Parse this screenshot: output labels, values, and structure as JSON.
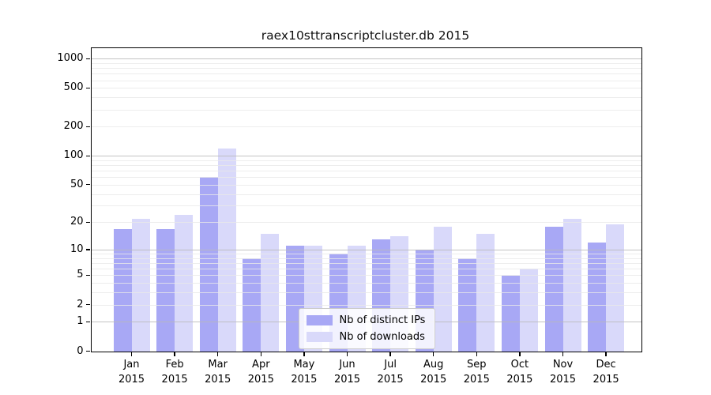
{
  "chart_data": {
    "type": "bar",
    "title": "raex10sttranscriptcluster.db 2015",
    "scale": "log10(value+1)",
    "categories": [
      "Jan",
      "Feb",
      "Mar",
      "Apr",
      "May",
      "Jun",
      "Jul",
      "Aug",
      "Sep",
      "Oct",
      "Nov",
      "Dec"
    ],
    "category_year": "2015",
    "series": [
      {
        "name": "Nb of distinct IPs",
        "color": "#a8a8f5",
        "values": [
          17,
          17,
          60,
          8,
          11,
          9,
          13,
          10,
          8,
          5,
          18,
          12
        ]
      },
      {
        "name": "Nb of downloads",
        "color": "#d9d9fa",
        "values": [
          22,
          24,
          120,
          15,
          11,
          11,
          14,
          18,
          15,
          6,
          22,
          19
        ]
      }
    ],
    "ylabel": "",
    "xlabel": "",
    "yticks": [
      0,
      1,
      2,
      5,
      10,
      20,
      50,
      100,
      200,
      500,
      1000
    ],
    "ylim": [
      0,
      1282
    ],
    "grid": {
      "on": true,
      "major_lines": [
        1,
        10,
        100,
        1000
      ],
      "minor_lines": [
        2,
        3,
        4,
        5,
        6,
        7,
        8,
        9,
        20,
        30,
        40,
        50,
        60,
        70,
        80,
        90,
        200,
        300,
        400,
        500,
        600,
        700,
        800,
        900
      ]
    },
    "legend": {
      "position": "inside-bottom-center"
    },
    "colors": {
      "axis": "#000000",
      "major_grid": "#b9b9b9",
      "minor_grid": "#e9e9e9",
      "background": "#ffffff"
    }
  }
}
